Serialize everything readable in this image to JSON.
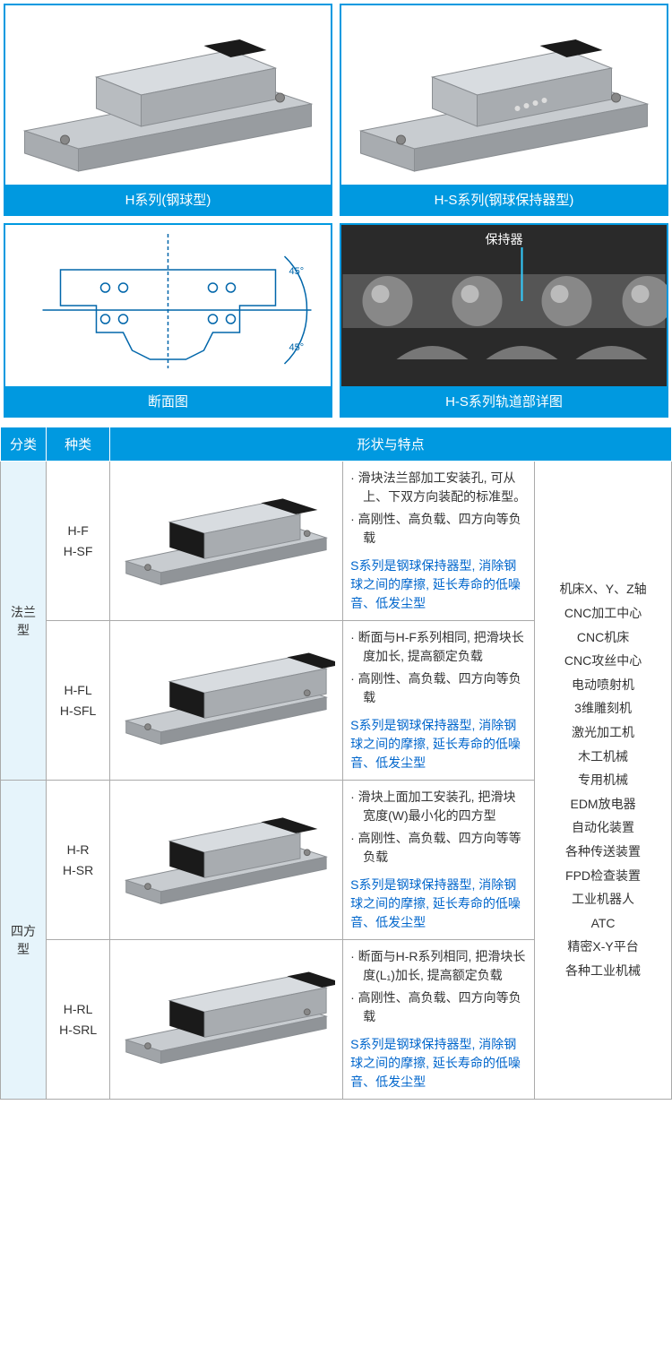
{
  "figures": {
    "top_left_cap": "H系列(钢球型)",
    "top_right_cap": "H-S系列(钢球保持器型)",
    "bot_left_cap": "断面图",
    "bot_right_cap": "H-S系列轨道部详图",
    "retainer_label": "保持器",
    "angle_label": "45°"
  },
  "table": {
    "headers": {
      "cat": "分类",
      "type": "种类",
      "shape": "形状与特点"
    },
    "categories": {
      "flange": "法兰型",
      "square": "四方型"
    },
    "rows": [
      {
        "type1": "H-F",
        "type2": "H-SF",
        "b1": "· 滑块法兰部加工安装孔, 可从上、下双方向装配的标准型。",
        "b2": "· 高刚性、高负载、四方向等负载",
        "blue": "S系列是钢球保持器型, 消除钢球之间的摩擦, 延长寿命的低噪音、低发尘型"
      },
      {
        "type1": "H-FL",
        "type2": "H-SFL",
        "b1": "· 断面与H-F系列相同, 把滑块长度加长, 提高额定负载",
        "b2": "· 高刚性、高负载、四方向等负载",
        "blue": "S系列是钢球保持器型, 消除钢球之间的摩擦, 延长寿命的低噪音、低发尘型"
      },
      {
        "type1": "H-R",
        "type2": "H-SR",
        "b1": "· 滑块上面加工安装孔, 把滑块宽度(W)最小化的四方型",
        "b2": "· 高刚性、高负载、四方向等等负载",
        "blue": "S系列是钢球保持器型, 消除钢球之间的摩擦, 延长寿命的低噪音、低发尘型"
      },
      {
        "type1": "H-RL",
        "type2": "H-SRL",
        "b1": "· 断面与H-R系列相同, 把滑块长度(L₁)加长, 提高额定负载",
        "b2": "· 高刚性、高负载、四方向等负载",
        "blue": "S系列是钢球保持器型, 消除钢球之间的摩擦, 延长寿命的低噪音、低发尘型"
      }
    ],
    "applications": [
      "机床X、Y、Z轴",
      "CNC加工中心",
      "CNC机床",
      "CNC攻丝中心",
      "电动喷射机",
      "3维雕刻机",
      "激光加工机",
      "木工机械",
      "专用机械",
      "EDM放电器",
      "自动化装置",
      "各种传送装置",
      "FPD检查装置",
      "工业机器人",
      "ATC",
      "精密X-Y平台",
      "各种工业机械"
    ]
  },
  "colors": {
    "brand": "#0099e0",
    "blue_text": "#0066cc",
    "border": "#aaaaaa",
    "cat_bg": "#e6f4fb",
    "dark_bg": "#2a2a2a",
    "rail_body": "#c8ccd0",
    "rail_dark": "#8a8e92",
    "block_dark": "#1a1a1a"
  }
}
